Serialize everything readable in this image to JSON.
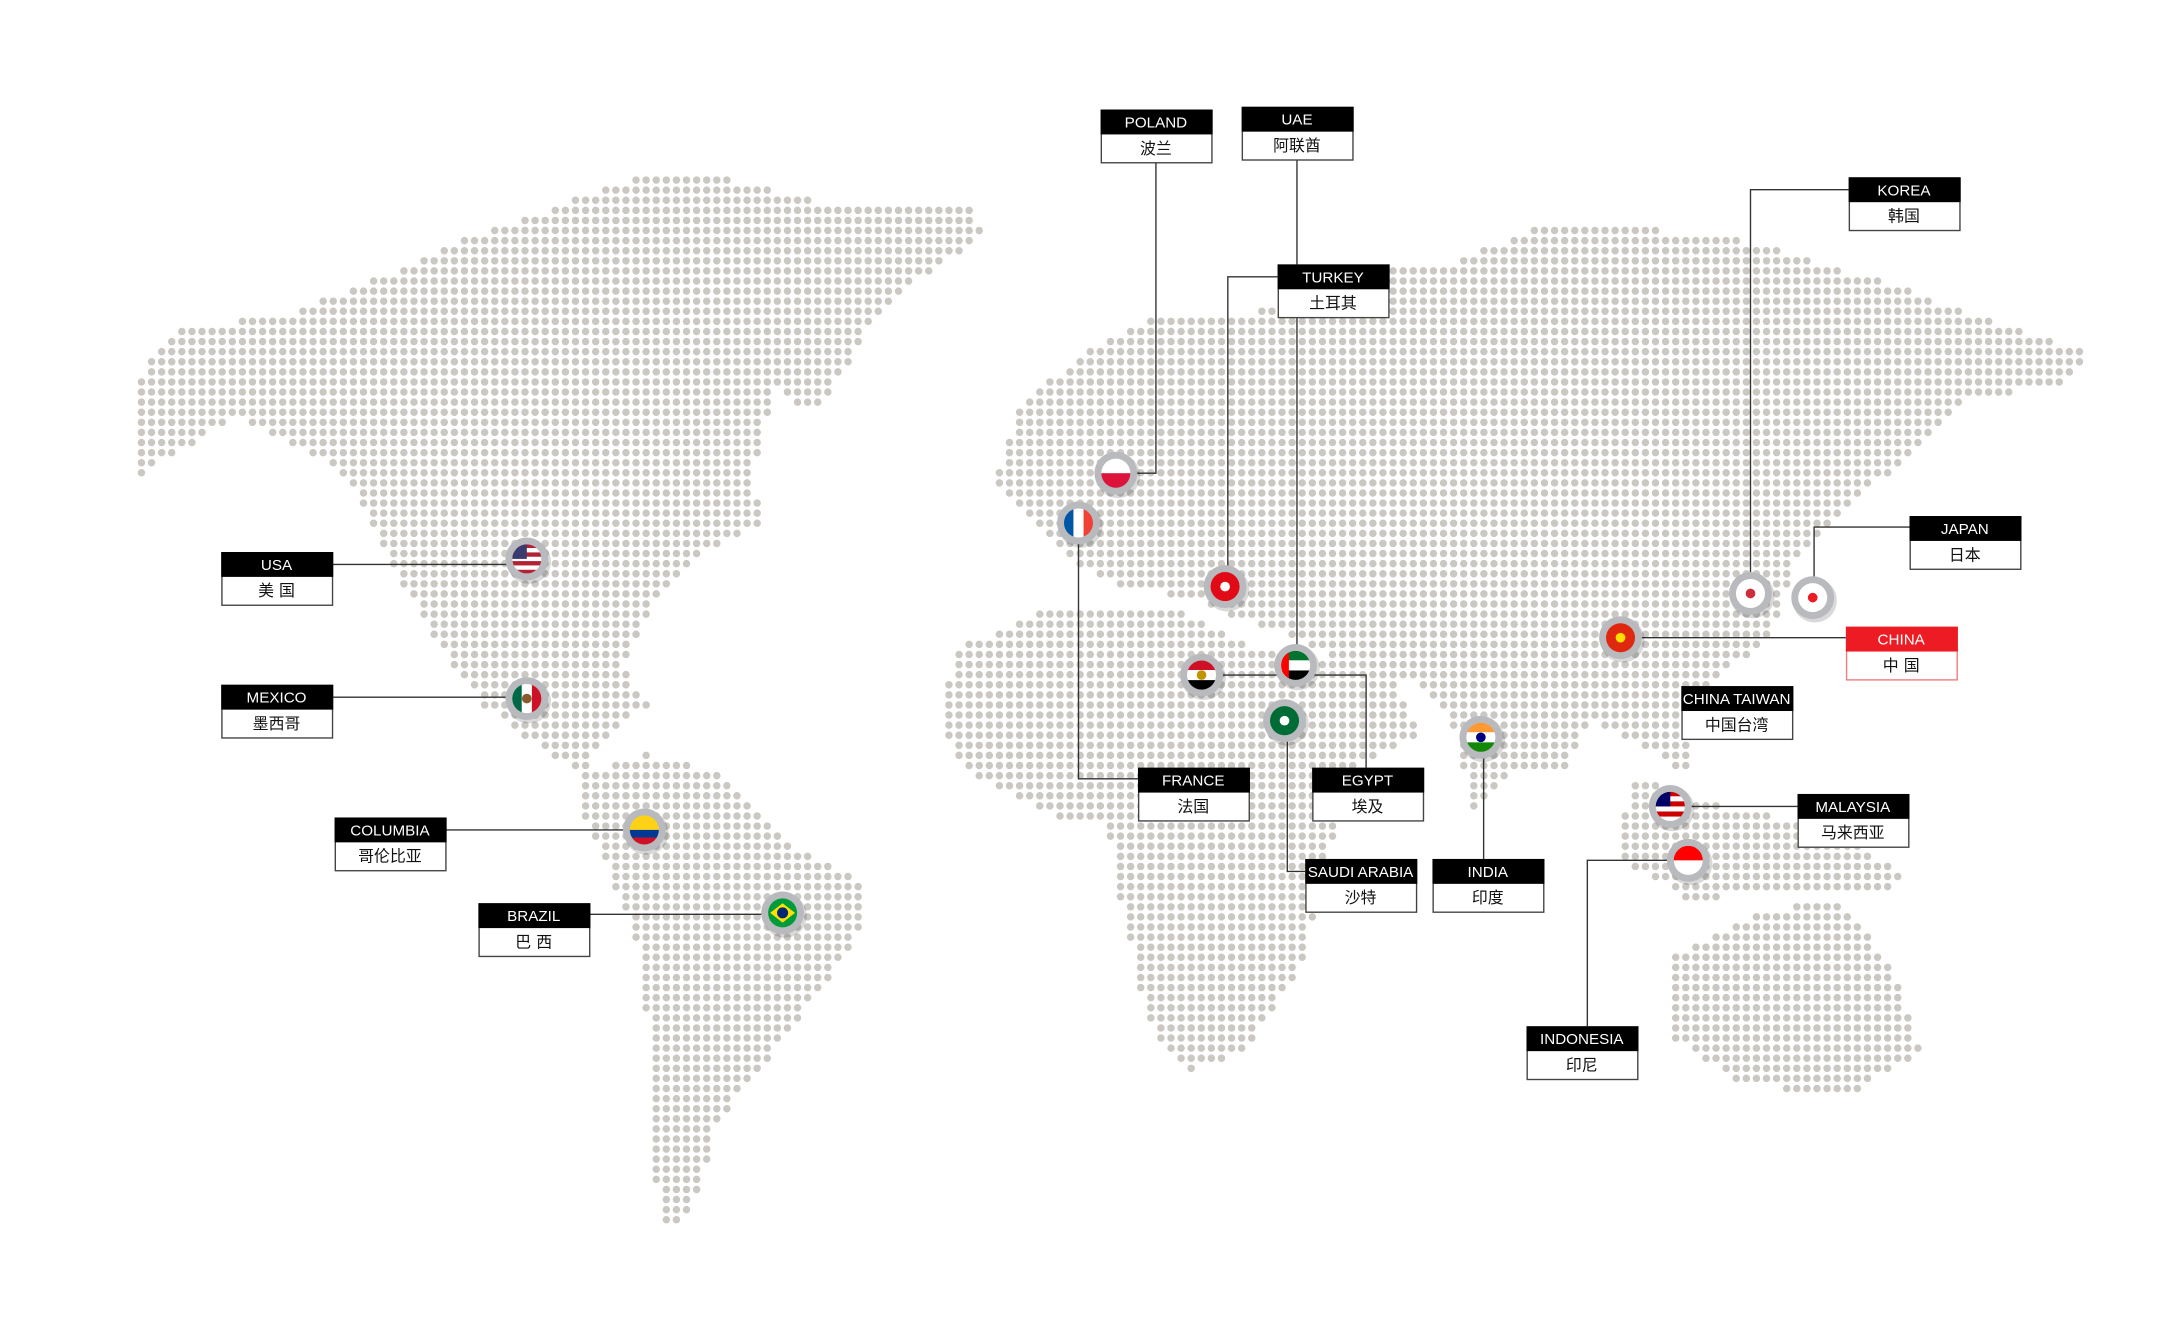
{
  "map": {
    "dot_color": "#cbc8c3",
    "line_color": "#333333",
    "highlight_color": "#ed1c24"
  },
  "countries": [
    {
      "en": "USA",
      "cn": "美 国",
      "flag": {
        "dir": "h",
        "colors": [
          "#b22234",
          "#ffffff",
          "#b22234",
          "#ffffff",
          "#b22234",
          "#ffffff",
          "#b22234"
        ],
        "canton": "#3c3b6e"
      }
    },
    {
      "en": "MEXICO",
      "cn": "墨西哥",
      "flag": {
        "dir": "v",
        "colors": [
          "#006847",
          "#ffffff",
          "#ce1126"
        ],
        "emblem": "#8b5a2b"
      }
    },
    {
      "en": "COLUMBIA",
      "cn": "哥伦比亚",
      "flag": {
        "dir": "h",
        "colors": [
          "#fcd116",
          "#fcd116",
          "#003893",
          "#ce1126"
        ]
      }
    },
    {
      "en": "BRAZIL",
      "cn": "巴 西",
      "flag": {
        "dir": "h",
        "colors": [
          "#009c3b"
        ],
        "diamond": "#ffdf00",
        "emblem": "#002776"
      }
    },
    {
      "en": "POLAND",
      "cn": "波兰",
      "flag": {
        "dir": "h",
        "colors": [
          "#ffffff",
          "#dc143c"
        ]
      }
    },
    {
      "en": "UAE",
      "cn": "阿联酋",
      "flag": {
        "dir": "h",
        "colors": [
          "#00732f",
          "#ffffff",
          "#000000"
        ],
        "hoist": "#ff0000"
      }
    },
    {
      "en": "TURKEY",
      "cn": "土耳其",
      "flag": {
        "dir": "h",
        "colors": [
          "#e30a17"
        ],
        "emblem": "#ffffff"
      }
    },
    {
      "en": "KOREA",
      "cn": "韩国",
      "flag": {
        "dir": "h",
        "colors": [
          "#ffffff"
        ],
        "emblem": "#cd2e3a"
      }
    },
    {
      "en": "JAPAN",
      "cn": "日本",
      "flag": {
        "dir": "h",
        "colors": [
          "#ffffff"
        ],
        "emblem": "#ed1c24"
      }
    },
    {
      "en": "CHINA",
      "cn": "中 国",
      "highlight": true,
      "flag": {
        "dir": "h",
        "colors": [
          "#de2910"
        ],
        "emblem": "#ffde00"
      }
    },
    {
      "en": "CHINA TAIWAN",
      "cn": "中国台湾"
    },
    {
      "en": "MALAYSIA",
      "cn": "马来西亚",
      "flag": {
        "dir": "h",
        "colors": [
          "#cc0001",
          "#ffffff",
          "#cc0001",
          "#ffffff",
          "#cc0001",
          "#ffffff"
        ],
        "canton": "#010066"
      }
    },
    {
      "en": "INDONESIA",
      "cn": "印尼",
      "flag": {
        "dir": "h",
        "colors": [
          "#ff0000",
          "#ffffff"
        ]
      }
    },
    {
      "en": "FRANCE",
      "cn": "法国",
      "flag": {
        "dir": "v",
        "colors": [
          "#0055a4",
          "#ffffff",
          "#ef4135"
        ]
      }
    },
    {
      "en": "EGYPT",
      "cn": "埃及",
      "flag": {
        "dir": "h",
        "colors": [
          "#ce1126",
          "#ffffff",
          "#000000"
        ],
        "emblem": "#c09300"
      }
    },
    {
      "en": "SAUDI ARABIA",
      "cn": "沙特",
      "flag": {
        "dir": "h",
        "colors": [
          "#006c35"
        ],
        "emblem": "#ffffff"
      }
    },
    {
      "en": "INDIA",
      "cn": "印度",
      "flag": {
        "dir": "h",
        "colors": [
          "#ff9933",
          "#ffffff",
          "#138808"
        ],
        "emblem": "#000080"
      }
    }
  ]
}
